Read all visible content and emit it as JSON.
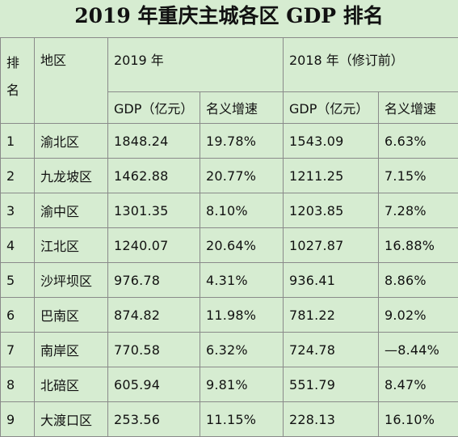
{
  "title": "2019 年重庆主城各区 GDP 排名",
  "headers": {
    "rank_line1": "排",
    "rank_line2": "名",
    "region": "地区",
    "year_2019": "2019 年",
    "year_2018": "2018 年（修订前）",
    "gdp": "GDP（亿元）",
    "growth": "名义增速"
  },
  "rows": [
    {
      "rank": "1",
      "region": "渝北区",
      "gdp2019": "1848.24",
      "growth2019": "19.78%",
      "gdp2018": "1543.09",
      "growth2018": "6.63%"
    },
    {
      "rank": "2",
      "region": "九龙坡区",
      "gdp2019": "1462.88",
      "growth2019": "20.77%",
      "gdp2018": "1211.25",
      "growth2018": "7.15%"
    },
    {
      "rank": "3",
      "region": "渝中区",
      "gdp2019": "1301.35",
      "growth2019": "8.10%",
      "gdp2018": "1203.85",
      "growth2018": "7.28%"
    },
    {
      "rank": "4",
      "region": "江北区",
      "gdp2019": "1240.07",
      "growth2019": "20.64%",
      "gdp2018": "1027.87",
      "growth2018": "16.88%"
    },
    {
      "rank": "5",
      "region": "沙坪坝区",
      "gdp2019": "976.78",
      "growth2019": "4.31%",
      "gdp2018": "936.41",
      "growth2018": "8.86%"
    },
    {
      "rank": "6",
      "region": "巴南区",
      "gdp2019": "874.82",
      "growth2019": "11.98%",
      "gdp2018": "781.22",
      "growth2018": "9.02%"
    },
    {
      "rank": "7",
      "region": "南岸区",
      "gdp2019": "770.58",
      "growth2019": "6.32%",
      "gdp2018": "724.78",
      "growth2018": "—8.44%"
    },
    {
      "rank": "8",
      "region": "北碚区",
      "gdp2019": "605.94",
      "growth2019": "9.81%",
      "gdp2018": "551.79",
      "growth2018": "8.47%"
    },
    {
      "rank": "9",
      "region": "大渡口区",
      "gdp2019": "253.56",
      "growth2019": "11.15%",
      "gdp2018": "228.13",
      "growth2018": "16.10%"
    }
  ]
}
